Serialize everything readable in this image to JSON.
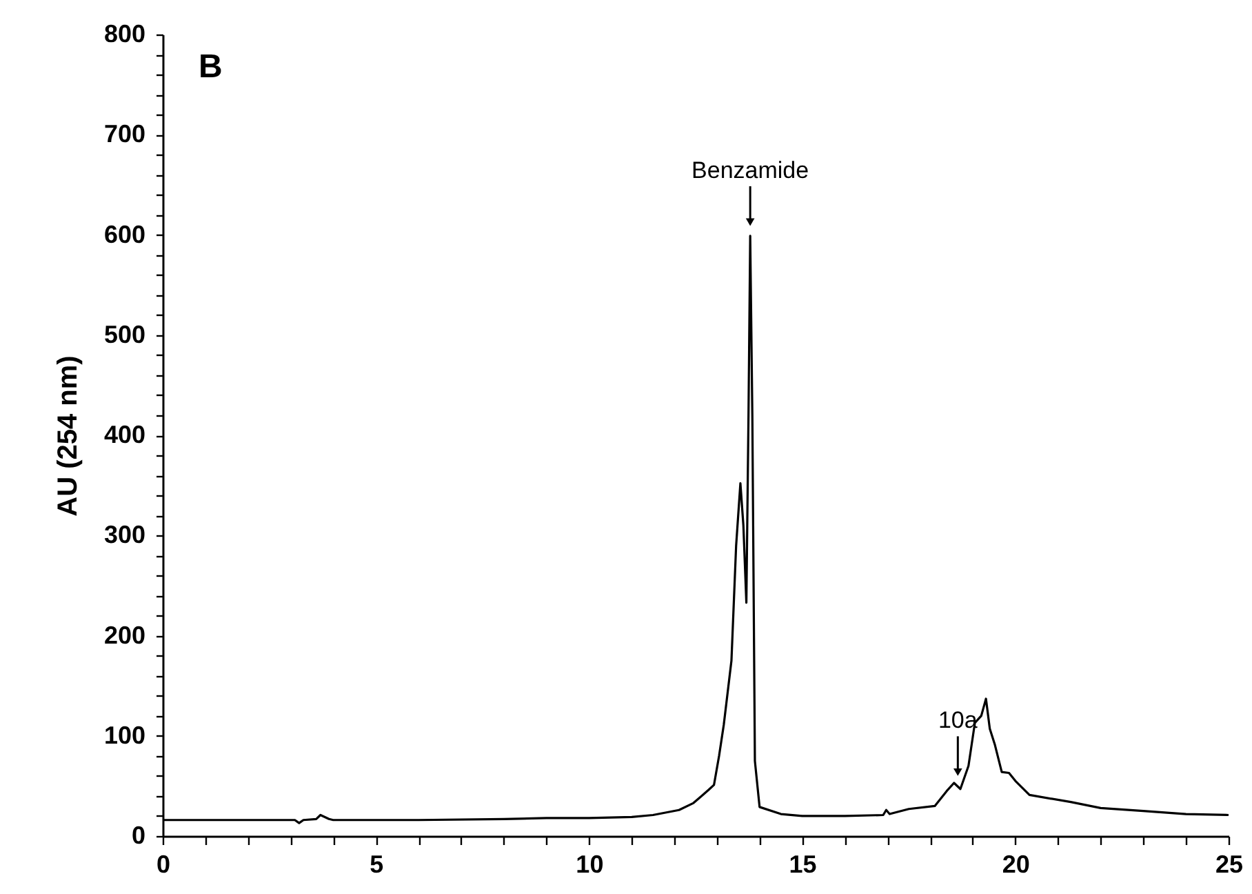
{
  "chart_data": {
    "type": "line",
    "ylabel": "AU (254 nm)",
    "annotations": [
      "B",
      {
        "text": "Benzamide",
        "x": 13.78,
        "y": 599
      },
      {
        "text": "10a",
        "x": 18.65,
        "y": 50
      }
    ],
    "x": [
      0,
      3.1,
      3.2,
      3.3,
      3.6,
      3.7,
      3.9,
      4.0,
      6,
      8,
      9,
      10,
      11,
      11.5,
      12.11,
      12.45,
      12.8,
      12.93,
      13.05,
      13.16,
      13.34,
      13.45,
      13.55,
      13.62,
      13.69,
      13.74,
      13.78,
      13.83,
      13.89,
      14.0,
      14.5,
      15,
      16,
      16.9,
      16.97,
      17.05,
      17.5,
      18.11,
      18.39,
      18.56,
      18.71,
      18.9,
      19.05,
      19.2,
      19.31,
      19.4,
      19.52,
      19.68,
      19.85,
      20.0,
      20.33,
      21.3,
      22,
      23,
      24,
      25
    ],
    "series": [
      {
        "color": "#000000",
        "values": [
          16,
          16,
          13,
          16,
          17,
          21,
          17,
          16,
          16,
          17,
          18,
          18,
          19,
          21,
          26,
          33,
          46,
          51,
          80,
          111,
          175,
          290,
          352,
          310,
          233,
          420,
          599,
          420,
          75,
          29,
          22,
          20,
          20,
          21,
          26,
          22,
          27,
          30,
          45,
          53,
          47,
          70,
          113,
          120,
          137,
          107,
          91,
          64,
          63,
          55,
          41,
          34,
          28,
          25,
          22,
          21
        ]
      }
    ],
    "xlim": [
      0,
      25
    ],
    "xticks": [
      0,
      {
        "value": 1,
        "label": null
      },
      {
        "value": 2,
        "label": null
      },
      {
        "value": 3,
        "label": null
      },
      {
        "value": 4,
        "label": null
      },
      5,
      {
        "value": 6,
        "label": null
      },
      {
        "value": 7,
        "label": null
      },
      {
        "value": 8,
        "label": null
      },
      {
        "value": 9,
        "label": null
      },
      10,
      {
        "value": 11,
        "label": null
      },
      {
        "value": 12,
        "label": null
      },
      {
        "value": 13,
        "label": null
      },
      {
        "value": 14,
        "label": null
      },
      15,
      {
        "value": 16,
        "label": null
      },
      {
        "value": 17,
        "label": null
      },
      {
        "value": 18,
        "label": null
      },
      {
        "value": 19,
        "label": null
      },
      20,
      {
        "value": 21,
        "label": null
      },
      {
        "value": 22,
        "label": null
      },
      {
        "value": 23,
        "label": null
      },
      {
        "value": 24,
        "label": null
      },
      25
    ],
    "ylim": [
      0,
      800
    ],
    "yticks": [
      0,
      {
        "value": 20,
        "label": null
      },
      {
        "value": 40,
        "label": null
      },
      {
        "value": 60,
        "label": null
      },
      {
        "value": 80,
        "label": null
      },
      100,
      {
        "value": 120,
        "label": null
      },
      {
        "value": 140,
        "label": null
      },
      {
        "value": 160,
        "label": null
      },
      {
        "value": 180,
        "label": null
      },
      200,
      {
        "value": 220,
        "label": null
      },
      {
        "value": 240,
        "label": null
      },
      {
        "value": 260,
        "label": null
      },
      {
        "value": 280,
        "label": null
      },
      300,
      {
        "value": 320,
        "label": null
      },
      {
        "value": 340,
        "label": null
      },
      {
        "value": 360,
        "label": null
      },
      {
        "value": 380,
        "label": null
      },
      400,
      {
        "value": 420,
        "label": null
      },
      {
        "value": 440,
        "label": null
      },
      {
        "value": 460,
        "label": null
      },
      {
        "value": 480,
        "label": null
      },
      500,
      {
        "value": 520,
        "label": null
      },
      {
        "value": 540,
        "label": null
      },
      {
        "value": 560,
        "label": null
      },
      {
        "value": 580,
        "label": null
      },
      600,
      {
        "value": 620,
        "label": null
      },
      {
        "value": 640,
        "label": null
      },
      {
        "value": 660,
        "label": null
      },
      {
        "value": 680,
        "label": null
      },
      700,
      {
        "value": 720,
        "label": null
      },
      {
        "value": 740,
        "label": null
      },
      {
        "value": 760,
        "label": null
      },
      {
        "value": 780,
        "label": null
      },
      800
    ],
    "grid": false,
    "marker": "none",
    "line_style": "solid"
  }
}
